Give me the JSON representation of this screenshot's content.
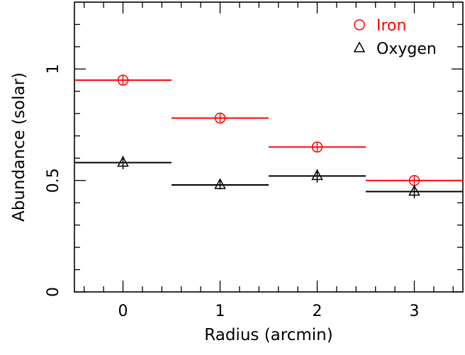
{
  "chart_data": {
    "type": "scatter",
    "xlabel": "Radius (arcmin)",
    "ylabel": "Abundance (solar)",
    "xlim": [
      -0.5,
      3.5
    ],
    "ylim": [
      0,
      1.3
    ],
    "x_ticks": [
      0,
      1,
      2,
      3
    ],
    "y_ticks": [
      0,
      0.5,
      1
    ],
    "x_tick_labels": [
      "0",
      "1",
      "2",
      "3"
    ],
    "y_tick_labels": [
      "0",
      "0.5",
      "1"
    ],
    "grid": false,
    "legend_position": "top-right",
    "series": [
      {
        "name": "Iron",
        "marker": "circle",
        "color": "#ff0000",
        "points": [
          {
            "x": 0,
            "y": 0.95,
            "xerr": 0.5,
            "yerr": 0.02
          },
          {
            "x": 1,
            "y": 0.78,
            "xerr": 0.5,
            "yerr": 0.02
          },
          {
            "x": 2,
            "y": 0.65,
            "xerr": 0.5,
            "yerr": 0.02
          },
          {
            "x": 3,
            "y": 0.5,
            "xerr": 0.5,
            "yerr": 0.02
          }
        ]
      },
      {
        "name": "Oxygen",
        "marker": "triangle",
        "color": "#000000",
        "points": [
          {
            "x": 0,
            "y": 0.58,
            "xerr": 0.5,
            "yerr": 0.03
          },
          {
            "x": 1,
            "y": 0.48,
            "xerr": 0.5,
            "yerr": 0.02
          },
          {
            "x": 2,
            "y": 0.52,
            "xerr": 0.5,
            "yerr": 0.03
          },
          {
            "x": 3,
            "y": 0.45,
            "xerr": 0.5,
            "yerr": 0.03
          }
        ]
      }
    ]
  }
}
